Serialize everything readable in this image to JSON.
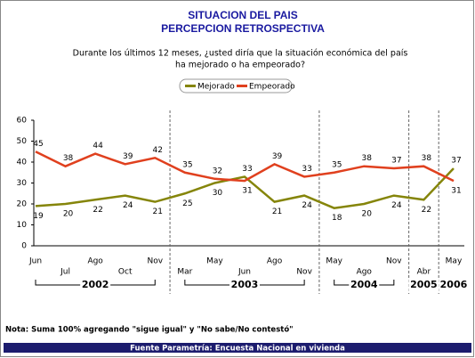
{
  "chart_data": {
    "type": "line",
    "title": "SITUACION DEL PAIS",
    "subtitle": "PERCEPCION RETROSPECTIVA",
    "question": [
      "Durante los últimos 12 meses, ¿usted diría que la situación económica del país",
      "ha mejorado o ha empeorado?"
    ],
    "categories": [
      "Jun",
      "Jul",
      "Ago",
      "Oct",
      "Nov",
      "Mar",
      "May",
      "Jun",
      "Ago",
      "Nov",
      "May",
      "Ago",
      "Nov",
      "Abr",
      "May"
    ],
    "years": [
      "2002",
      "2003",
      "2004",
      "2005",
      "2006"
    ],
    "series": [
      {
        "name": "Mejorado",
        "color": "#85850a",
        "values": [
          19,
          20,
          22,
          24,
          21,
          25,
          30,
          33,
          21,
          24,
          18,
          20,
          24,
          22,
          37
        ]
      },
      {
        "name": "Empeorado",
        "color": "#e0401e",
        "values": [
          45,
          38,
          44,
          39,
          42,
          35,
          32,
          31,
          39,
          33,
          35,
          38,
          37,
          38,
          31
        ]
      }
    ],
    "ylim": [
      0,
      60
    ],
    "yticks": [
      0,
      10,
      20,
      30,
      40,
      50,
      60
    ],
    "grid": false,
    "note": "Nota: Suma 100% agregando \"sigue igual\" y \"No sabe/No contestó\"",
    "source": "Fuente Parametría: Encuesta Nacional en vivienda"
  }
}
